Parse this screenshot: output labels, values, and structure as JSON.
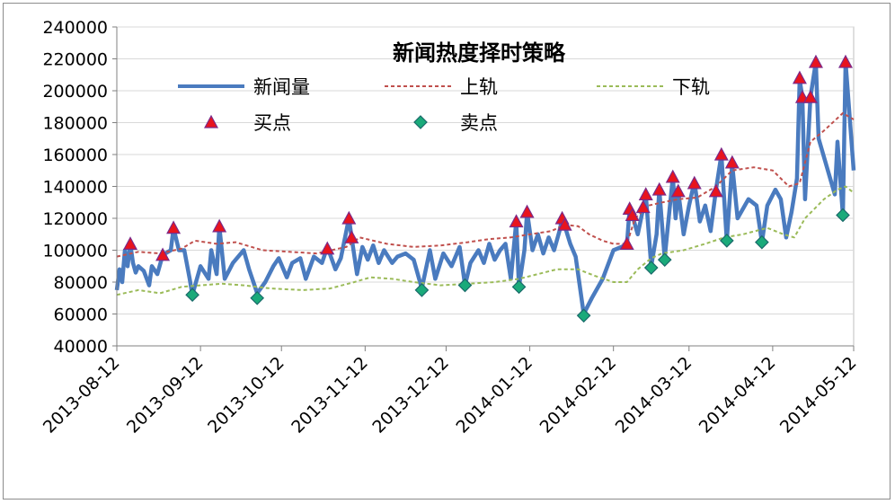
{
  "chart_data": {
    "type": "line",
    "title": "新闻热度择时策略",
    "xlabel": "",
    "ylabel": "",
    "ylim": [
      40000,
      240000
    ],
    "yticks": [
      40000,
      60000,
      80000,
      100000,
      120000,
      140000,
      160000,
      180000,
      200000,
      220000,
      240000
    ],
    "x_tick_labels": [
      "2013-08-12",
      "2013-09-12",
      "2013-10-12",
      "2013-11-12",
      "2013-12-12",
      "2014-01-12",
      "2014-02-12",
      "2014-03-12",
      "2014-04-12",
      "2014-05-12"
    ],
    "grid": "horizontal",
    "legend_position": "top",
    "colors": {
      "news": "#4a7bbf",
      "upper": "#c0504d",
      "lower": "#9bbb59",
      "buy_fill": "#e8141e",
      "buy_stroke": "#7a2a8a",
      "sell_fill": "#1aaa7a",
      "sell_stroke": "#1a6a6a",
      "grid": "#d9d9d9"
    },
    "series": [
      {
        "name": "新闻量",
        "key": "news",
        "points": [
          [
            "2013-08-12",
            75000
          ],
          [
            "2013-08-13",
            88000
          ],
          [
            "2013-08-14",
            80000
          ],
          [
            "2013-08-15",
            100000
          ],
          [
            "2013-08-16",
            90000
          ],
          [
            "2013-08-17",
            104000
          ],
          [
            "2013-08-18",
            92000
          ],
          [
            "2013-08-19",
            86000
          ],
          [
            "2013-08-20",
            90000
          ],
          [
            "2013-08-22",
            87000
          ],
          [
            "2013-08-24",
            78000
          ],
          [
            "2013-08-25",
            90000
          ],
          [
            "2013-08-27",
            85000
          ],
          [
            "2013-08-29",
            97000
          ],
          [
            "2013-09-01",
            100000
          ],
          [
            "2013-09-02",
            114000
          ],
          [
            "2013-09-04",
            100000
          ],
          [
            "2013-09-06",
            100000
          ],
          [
            "2013-09-08",
            82000
          ],
          [
            "2013-09-09",
            72000
          ],
          [
            "2013-09-12",
            90000
          ],
          [
            "2013-09-15",
            82000
          ],
          [
            "2013-09-16",
            100000
          ],
          [
            "2013-09-18",
            85000
          ],
          [
            "2013-09-19",
            115000
          ],
          [
            "2013-09-21",
            82000
          ],
          [
            "2013-09-24",
            92000
          ],
          [
            "2013-09-28",
            100000
          ],
          [
            "2013-09-30",
            88000
          ],
          [
            "2013-10-03",
            73000
          ],
          [
            "2013-10-06",
            80000
          ],
          [
            "2013-10-09",
            90000
          ],
          [
            "2013-10-11",
            95000
          ],
          [
            "2013-10-14",
            83000
          ],
          [
            "2013-10-16",
            92000
          ],
          [
            "2013-10-19",
            95000
          ],
          [
            "2013-10-21",
            82000
          ],
          [
            "2013-10-24",
            96000
          ],
          [
            "2013-10-27",
            92000
          ],
          [
            "2013-10-29",
            102000
          ],
          [
            "2013-11-01",
            88000
          ],
          [
            "2013-11-03",
            95000
          ],
          [
            "2013-11-06",
            120000
          ],
          [
            "2013-11-07",
            108000
          ],
          [
            "2013-11-09",
            85000
          ],
          [
            "2013-11-11",
            102000
          ],
          [
            "2013-11-13",
            94000
          ],
          [
            "2013-11-15",
            103000
          ],
          [
            "2013-11-17",
            92000
          ],
          [
            "2013-11-19",
            100000
          ],
          [
            "2013-11-22",
            92000
          ],
          [
            "2013-11-24",
            96000
          ],
          [
            "2013-11-27",
            98000
          ],
          [
            "2013-11-30",
            94000
          ],
          [
            "2013-12-03",
            76000
          ],
          [
            "2013-12-06",
            100000
          ],
          [
            "2013-12-08",
            82000
          ],
          [
            "2013-12-11",
            98000
          ],
          [
            "2013-12-14",
            90000
          ],
          [
            "2013-12-17",
            102000
          ],
          [
            "2013-12-19",
            78000
          ],
          [
            "2013-12-21",
            92000
          ],
          [
            "2013-12-24",
            100000
          ],
          [
            "2013-12-26",
            92000
          ],
          [
            "2013-12-28",
            104000
          ],
          [
            "2013-12-30",
            94000
          ],
          [
            "2014-01-01",
            100000
          ],
          [
            "2014-01-03",
            104000
          ],
          [
            "2014-01-05",
            82000
          ],
          [
            "2014-01-07",
            118000
          ],
          [
            "2014-01-08",
            77000
          ],
          [
            "2014-01-10",
            100000
          ],
          [
            "2014-01-11",
            124000
          ],
          [
            "2014-01-13",
            100000
          ],
          [
            "2014-01-15",
            110000
          ],
          [
            "2014-01-17",
            98000
          ],
          [
            "2014-01-19",
            108000
          ],
          [
            "2014-01-21",
            100000
          ],
          [
            "2014-01-23",
            112000
          ],
          [
            "2014-01-24",
            120000
          ],
          [
            "2014-01-25",
            115000
          ],
          [
            "2014-01-27",
            104000
          ],
          [
            "2014-01-29",
            96000
          ],
          [
            "2014-02-01",
            60000
          ],
          [
            "2014-02-04",
            70000
          ],
          [
            "2014-02-08",
            82000
          ],
          [
            "2014-02-12",
            100000
          ],
          [
            "2014-02-15",
            102000
          ],
          [
            "2014-02-17",
            104000
          ],
          [
            "2014-02-18",
            126000
          ],
          [
            "2014-02-19",
            122000
          ],
          [
            "2014-02-21",
            110000
          ],
          [
            "2014-02-23",
            126000
          ],
          [
            "2014-02-24",
            135000
          ],
          [
            "2014-02-26",
            90000
          ],
          [
            "2014-02-28",
            110000
          ],
          [
            "2014-03-01",
            138000
          ],
          [
            "2014-03-03",
            95000
          ],
          [
            "2014-03-04",
            112000
          ],
          [
            "2014-03-06",
            146000
          ],
          [
            "2014-03-07",
            120000
          ],
          [
            "2014-03-08",
            137000
          ],
          [
            "2014-03-10",
            110000
          ],
          [
            "2014-03-12",
            128000
          ],
          [
            "2014-03-14",
            143000
          ],
          [
            "2014-03-16",
            118000
          ],
          [
            "2014-03-18",
            128000
          ],
          [
            "2014-03-20",
            112000
          ],
          [
            "2014-03-22",
            138000
          ],
          [
            "2014-03-24",
            160000
          ],
          [
            "2014-03-26",
            106000
          ],
          [
            "2014-03-28",
            154000
          ],
          [
            "2014-03-30",
            120000
          ],
          [
            "2014-04-03",
            132000
          ],
          [
            "2014-04-06",
            128000
          ],
          [
            "2014-04-08",
            105000
          ],
          [
            "2014-04-10",
            128000
          ],
          [
            "2014-04-13",
            138000
          ],
          [
            "2014-04-15",
            132000
          ],
          [
            "2014-04-17",
            108000
          ],
          [
            "2014-04-19",
            124000
          ],
          [
            "2014-04-21",
            145000
          ],
          [
            "2014-04-22",
            207000
          ],
          [
            "2014-04-23",
            196000
          ],
          [
            "2014-04-24",
            132000
          ],
          [
            "2014-04-26",
            196000
          ],
          [
            "2014-04-28",
            218000
          ],
          [
            "2014-04-29",
            170000
          ],
          [
            "2014-05-05",
            135000
          ],
          [
            "2014-05-06",
            168000
          ],
          [
            "2014-05-08",
            122000
          ],
          [
            "2014-05-09",
            218000
          ],
          [
            "2014-05-12",
            150000
          ]
        ]
      },
      {
        "name": "上轨",
        "key": "upper",
        "points": [
          [
            "2013-08-12",
            96000
          ],
          [
            "2013-08-20",
            99000
          ],
          [
            "2013-08-28",
            98000
          ],
          [
            "2013-09-05",
            101000
          ],
          [
            "2013-09-10",
            106000
          ],
          [
            "2013-09-18",
            104000
          ],
          [
            "2013-09-25",
            105000
          ],
          [
            "2013-10-05",
            100000
          ],
          [
            "2013-10-15",
            99000
          ],
          [
            "2013-10-25",
            98000
          ],
          [
            "2013-11-05",
            102000
          ],
          [
            "2013-11-10",
            108000
          ],
          [
            "2013-11-20",
            104000
          ],
          [
            "2013-11-30",
            102000
          ],
          [
            "2013-12-10",
            103000
          ],
          [
            "2013-12-20",
            105000
          ],
          [
            "2013-12-28",
            107000
          ],
          [
            "2014-01-05",
            108000
          ],
          [
            "2014-01-12",
            110000
          ],
          [
            "2014-01-20",
            112000
          ],
          [
            "2014-01-25",
            116000
          ],
          [
            "2014-01-30",
            115000
          ],
          [
            "2014-02-03",
            110000
          ],
          [
            "2014-02-08",
            106000
          ],
          [
            "2014-02-12",
            104000
          ],
          [
            "2014-02-17",
            104000
          ],
          [
            "2014-02-20",
            120000
          ],
          [
            "2014-02-25",
            128000
          ],
          [
            "2014-03-02",
            130000
          ],
          [
            "2014-03-08",
            132000
          ],
          [
            "2014-03-15",
            133000
          ],
          [
            "2014-03-22",
            140000
          ],
          [
            "2014-03-28",
            150000
          ],
          [
            "2014-04-05",
            152000
          ],
          [
            "2014-04-12",
            150000
          ],
          [
            "2014-04-18",
            140000
          ],
          [
            "2014-04-22",
            142000
          ],
          [
            "2014-04-26",
            168000
          ],
          [
            "2014-05-01",
            175000
          ],
          [
            "2014-05-08",
            186000
          ],
          [
            "2014-05-12",
            182000
          ]
        ]
      },
      {
        "name": "下轨",
        "key": "lower",
        "points": [
          [
            "2013-08-12",
            72000
          ],
          [
            "2013-08-20",
            75000
          ],
          [
            "2013-08-28",
            73000
          ],
          [
            "2013-09-05",
            77000
          ],
          [
            "2013-09-12",
            78000
          ],
          [
            "2013-09-20",
            79000
          ],
          [
            "2013-09-28",
            78000
          ],
          [
            "2013-10-08",
            76000
          ],
          [
            "2013-10-20",
            75000
          ],
          [
            "2013-10-30",
            76000
          ],
          [
            "2013-11-08",
            80000
          ],
          [
            "2013-11-14",
            83000
          ],
          [
            "2013-11-22",
            82000
          ],
          [
            "2013-11-30",
            80000
          ],
          [
            "2013-12-10",
            78000
          ],
          [
            "2013-12-20",
            79000
          ],
          [
            "2013-12-30",
            80000
          ],
          [
            "2014-01-08",
            82000
          ],
          [
            "2014-01-15",
            85000
          ],
          [
            "2014-01-22",
            88000
          ],
          [
            "2014-01-30",
            88000
          ],
          [
            "2014-02-05",
            84000
          ],
          [
            "2014-02-12",
            80000
          ],
          [
            "2014-02-17",
            80000
          ],
          [
            "2014-02-21",
            88000
          ],
          [
            "2014-02-26",
            95000
          ],
          [
            "2014-03-02",
            98000
          ],
          [
            "2014-03-10",
            100000
          ],
          [
            "2014-03-18",
            104000
          ],
          [
            "2014-03-25",
            108000
          ],
          [
            "2014-04-01",
            110000
          ],
          [
            "2014-04-10",
            114000
          ],
          [
            "2014-04-16",
            110000
          ],
          [
            "2014-04-20",
            108000
          ],
          [
            "2014-04-24",
            120000
          ],
          [
            "2014-05-01",
            132000
          ],
          [
            "2014-05-06",
            138000
          ],
          [
            "2014-05-09",
            140000
          ],
          [
            "2014-05-12",
            136000
          ]
        ]
      },
      {
        "name": "买点",
        "key": "buy",
        "points": [
          [
            "2013-08-17",
            104000
          ],
          [
            "2013-08-29",
            97000
          ],
          [
            "2013-09-02",
            114000
          ],
          [
            "2013-09-19",
            115000
          ],
          [
            "2013-10-29",
            101000
          ],
          [
            "2013-11-06",
            120000
          ],
          [
            "2013-11-07",
            108000
          ],
          [
            "2014-01-07",
            118000
          ],
          [
            "2014-01-11",
            124000
          ],
          [
            "2014-01-24",
            120000
          ],
          [
            "2014-01-25",
            116000
          ],
          [
            "2014-02-17",
            104000
          ],
          [
            "2014-02-18",
            126000
          ],
          [
            "2014-02-19",
            122000
          ],
          [
            "2014-02-23",
            127000
          ],
          [
            "2014-02-24",
            135000
          ],
          [
            "2014-03-01",
            138000
          ],
          [
            "2014-03-06",
            146000
          ],
          [
            "2014-03-08",
            137000
          ],
          [
            "2014-03-14",
            142000
          ],
          [
            "2014-03-22",
            137000
          ],
          [
            "2014-03-24",
            160000
          ],
          [
            "2014-03-28",
            155000
          ],
          [
            "2014-04-22",
            208000
          ],
          [
            "2014-04-23",
            196000
          ],
          [
            "2014-04-26",
            196000
          ],
          [
            "2014-04-28",
            218000
          ],
          [
            "2014-05-09",
            218000
          ]
        ]
      },
      {
        "name": "卖点",
        "key": "sell",
        "points": [
          [
            "2013-09-09",
            72000
          ],
          [
            "2013-10-03",
            70000
          ],
          [
            "2013-12-03",
            75000
          ],
          [
            "2013-12-19",
            78000
          ],
          [
            "2014-01-08",
            77000
          ],
          [
            "2014-02-01",
            59000
          ],
          [
            "2014-02-26",
            89000
          ],
          [
            "2014-03-03",
            94000
          ],
          [
            "2014-03-26",
            106000
          ],
          [
            "2014-04-08",
            105000
          ],
          [
            "2014-05-08",
            122000
          ]
        ]
      }
    ]
  }
}
